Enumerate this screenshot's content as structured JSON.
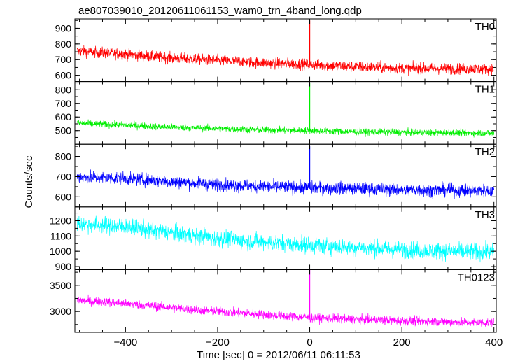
{
  "chart_data": {
    "type": "line",
    "title": "ae807039010_20120611061153_wam0_trn_4band_long.qdp",
    "xlabel": "Time [sec] 0 = 2012/06/11 06:11:53",
    "ylabel": "Counts/sec",
    "xlim": [
      -510,
      405
    ],
    "x_ticks": [
      -400,
      -200,
      0,
      200,
      400
    ],
    "grid": false,
    "panels": [
      {
        "name": "TH0",
        "color": "#ff0000",
        "ylim": [
          560,
          960
        ],
        "y_ticks": [
          600,
          700,
          800,
          900
        ],
        "baseline": [
          [
            -505,
            755
          ],
          [
            -400,
            735
          ],
          [
            -300,
            710
          ],
          [
            -200,
            695
          ],
          [
            -100,
            680
          ],
          [
            0,
            668
          ],
          [
            100,
            655
          ],
          [
            200,
            645
          ],
          [
            300,
            642
          ],
          [
            400,
            640
          ]
        ],
        "noise_amplitude": 35,
        "spike": {
          "x": 0,
          "y": 950
        }
      },
      {
        "name": "TH1",
        "color": "#00ee00",
        "ylim": [
          400,
          860
        ],
        "y_ticks": [
          500,
          600,
          700,
          800
        ],
        "baseline": [
          [
            -505,
            555
          ],
          [
            -400,
            540
          ],
          [
            -300,
            525
          ],
          [
            -200,
            515
          ],
          [
            -100,
            505
          ],
          [
            0,
            500
          ],
          [
            100,
            492
          ],
          [
            200,
            488
          ],
          [
            300,
            485
          ],
          [
            400,
            482
          ]
        ],
        "noise_amplitude": 25,
        "spike": {
          "x": 0,
          "y": 850
        }
      },
      {
        "name": "TH2",
        "color": "#0000ff",
        "ylim": [
          550,
          860
        ],
        "y_ticks": [
          600,
          700,
          800
        ],
        "baseline": [
          [
            -505,
            700
          ],
          [
            -400,
            690
          ],
          [
            -300,
            675
          ],
          [
            -200,
            660
          ],
          [
            -100,
            650
          ],
          [
            0,
            645
          ],
          [
            100,
            640
          ],
          [
            200,
            635
          ],
          [
            300,
            632
          ],
          [
            400,
            630
          ]
        ],
        "noise_amplitude": 32,
        "spike": {
          "x": 0,
          "y": 850
        }
      },
      {
        "name": "TH3",
        "color": "#00ffff",
        "ylim": [
          880,
          1290
        ],
        "y_ticks": [
          900,
          1000,
          1100,
          1200
        ],
        "baseline": [
          [
            -505,
            1180
          ],
          [
            -400,
            1160
          ],
          [
            -300,
            1120
          ],
          [
            -200,
            1085
          ],
          [
            -100,
            1060
          ],
          [
            0,
            1040
          ],
          [
            100,
            1025
          ],
          [
            200,
            1010
          ],
          [
            300,
            1000
          ],
          [
            400,
            995
          ]
        ],
        "noise_amplitude": 55,
        "spike": null
      },
      {
        "name": "TH0123",
        "color": "#ff00ff",
        "ylim": [
          2600,
          3800
        ],
        "y_ticks": [
          3000,
          3500
        ],
        "baseline": [
          [
            -505,
            3220
          ],
          [
            -400,
            3150
          ],
          [
            -300,
            3070
          ],
          [
            -200,
            3000
          ],
          [
            -100,
            2940
          ],
          [
            0,
            2880
          ],
          [
            100,
            2850
          ],
          [
            200,
            2820
          ],
          [
            300,
            2800
          ],
          [
            400,
            2780
          ]
        ],
        "noise_amplitude": 85,
        "spike": {
          "x": 0,
          "y": 3800
        }
      }
    ]
  }
}
